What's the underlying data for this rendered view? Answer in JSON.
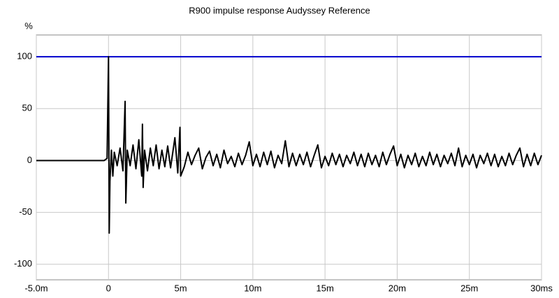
{
  "chart_data": {
    "type": "line",
    "title": "R900 impulse response Audyssey Reference",
    "y_label": "%",
    "xlim": [
      -5,
      30
    ],
    "ylim": [
      -115,
      121
    ],
    "xticks": [
      {
        "value": -5,
        "label": "-5.0m"
      },
      0,
      {
        "value": 5,
        "label": "5m"
      },
      {
        "value": 10,
        "label": "10m"
      },
      {
        "value": 15,
        "label": "15m"
      },
      {
        "value": 20,
        "label": "20m"
      },
      {
        "value": 25,
        "label": "25m"
      },
      {
        "value": 30,
        "label": "30ms"
      }
    ],
    "yticks": [
      100,
      50,
      0,
      -50,
      -100
    ],
    "grid": true,
    "series": [
      {
        "color": "#0000cc",
        "x": [
          -5,
          30
        ],
        "values": [
          100,
          100
        ]
      },
      {
        "color": "#000000",
        "x": [
          -5,
          -1,
          -0.3,
          -0.1,
          0,
          0.05,
          0.1,
          0.2,
          0.3,
          0.4,
          0.6,
          0.8,
          1.0,
          1.15,
          1.2,
          1.3,
          1.5,
          1.7,
          1.9,
          2.1,
          2.3,
          2.35,
          2.4,
          2.5,
          2.7,
          2.9,
          3.1,
          3.3,
          3.5,
          3.7,
          3.9,
          4.1,
          4.3,
          4.6,
          4.8,
          4.95,
          5.0,
          5.25,
          5.5,
          5.75,
          6,
          6.25,
          6.5,
          6.75,
          7,
          7.25,
          7.5,
          7.75,
          8,
          8.25,
          8.5,
          8.75,
          9,
          9.25,
          9.5,
          9.75,
          10,
          10.25,
          10.5,
          10.75,
          11,
          11.25,
          11.5,
          11.75,
          12,
          12.25,
          12.5,
          12.75,
          13,
          13.25,
          13.5,
          13.75,
          14,
          14.25,
          14.5,
          14.75,
          15,
          15.25,
          15.5,
          15.75,
          16,
          16.25,
          16.5,
          16.75,
          17,
          17.25,
          17.5,
          17.75,
          18,
          18.25,
          18.5,
          18.75,
          19,
          19.25,
          19.5,
          19.75,
          20,
          20.25,
          20.5,
          20.75,
          21,
          21.25,
          21.5,
          21.75,
          22,
          22.25,
          22.5,
          22.75,
          23,
          23.25,
          23.5,
          23.75,
          24,
          24.25,
          24.5,
          24.75,
          25,
          25.25,
          25.5,
          25.75,
          26,
          26.25,
          26.5,
          26.75,
          27,
          27.25,
          27.5,
          27.75,
          28,
          28.25,
          28.5,
          28.75,
          29,
          29.25,
          29.5,
          29.75,
          30
        ],
        "values": [
          0,
          0,
          0,
          2,
          100,
          -70,
          -20,
          10,
          -15,
          8,
          -5,
          12,
          -10,
          57,
          -41,
          10,
          -5,
          15,
          -8,
          20,
          -15,
          35,
          -26,
          10,
          -10,
          12,
          -5,
          15,
          -8,
          10,
          -6,
          14,
          -7,
          22,
          -12,
          32,
          -15,
          -6,
          8,
          -4,
          5,
          12,
          -8,
          3,
          9,
          -5,
          6,
          -7,
          10,
          -3,
          4,
          -6,
          7,
          -4,
          5,
          18,
          -5,
          6,
          -6,
          8,
          -4,
          9,
          -7,
          5,
          -3,
          19,
          -6,
          7,
          -5,
          6,
          -4,
          8,
          -6,
          5,
          15,
          -7,
          4,
          -5,
          7,
          -4,
          6,
          -6,
          5,
          -3,
          8,
          -5,
          6,
          -6,
          7,
          -4,
          5,
          -6,
          8,
          -4,
          6,
          14,
          -5,
          6,
          -7,
          5,
          -4,
          7,
          -6,
          4,
          -5,
          8,
          -4,
          6,
          -6,
          5,
          -3,
          7,
          -5,
          12,
          -6,
          5,
          -4,
          6,
          -7,
          5,
          -3,
          7,
          -5,
          6,
          -6,
          4,
          -5,
          7,
          -4,
          5,
          12,
          -6,
          6,
          -5,
          7,
          -4,
          5
        ]
      }
    ]
  }
}
